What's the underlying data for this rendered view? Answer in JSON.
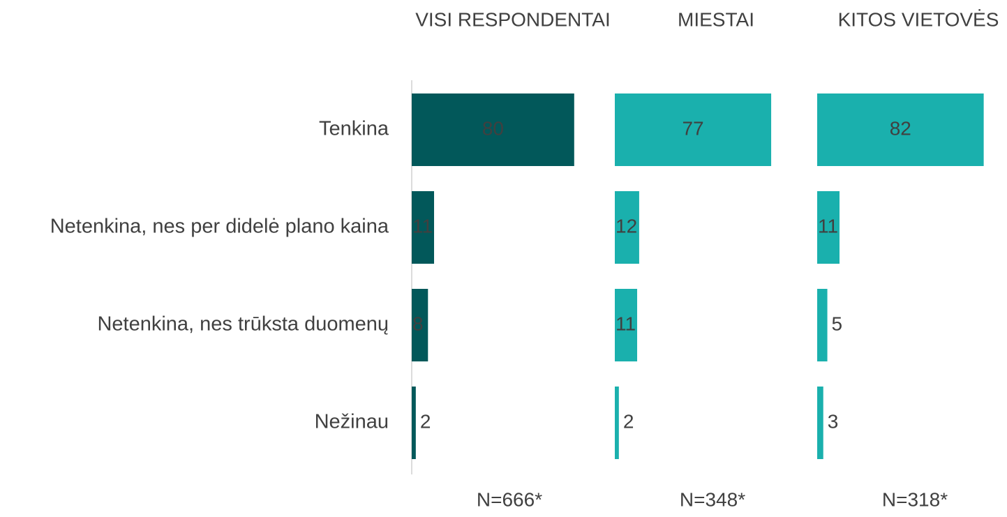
{
  "chart_data": {
    "type": "bar",
    "orientation": "horizontal",
    "categories": [
      "Tenkina",
      "Netenkina, nes per didelė plano kaina",
      "Netenkina, nes trūksta duomenų",
      "Nežinau"
    ],
    "series": [
      {
        "name": "VISI RESPONDENTAI",
        "color": "#02585a",
        "label_color": "#ffffff",
        "values": [
          80,
          11,
          8,
          2
        ]
      },
      {
        "name": "MIESTAI",
        "color": "#1ab0ad",
        "label_color": "#404040",
        "values": [
          77,
          12,
          11,
          2
        ]
      },
      {
        "name": "KITOS VIETOVĖS",
        "color": "#1ab0ad",
        "label_color": "#404040",
        "values": [
          82,
          11,
          5,
          3
        ]
      }
    ],
    "annotations": [
      "N=666*",
      "N=348*",
      "N=318*"
    ],
    "xlim": [
      0,
      100
    ]
  }
}
